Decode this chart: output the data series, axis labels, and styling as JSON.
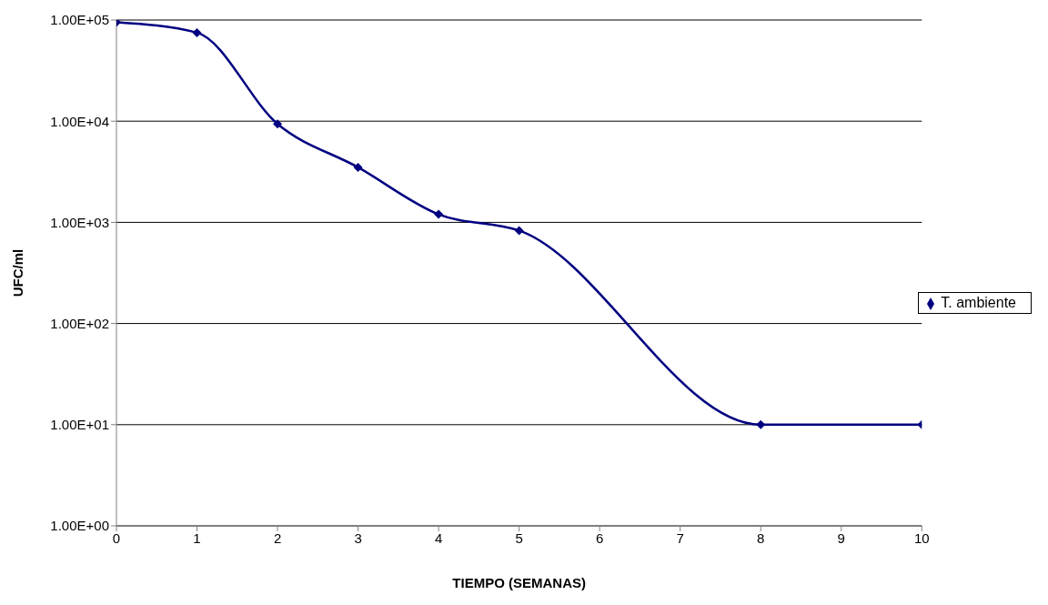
{
  "chart_data": {
    "type": "line",
    "xlabel": "TIEMPO (SEMANAS)",
    "ylabel": "UFC/ml",
    "x": [
      0,
      1,
      2,
      3,
      4,
      5,
      8,
      10
    ],
    "series": [
      {
        "name": "T. ambiente",
        "color": "#000080",
        "values": [
          95000,
          75000,
          9400,
          3500,
          1200,
          830,
          10,
          10
        ]
      }
    ],
    "xlim": [
      0,
      10
    ],
    "xticks": [
      0,
      1,
      2,
      3,
      4,
      5,
      6,
      7,
      8,
      9,
      10
    ],
    "ylim": [
      1,
      100000
    ],
    "yticks": [
      {
        "value": 1,
        "label": "1.00E+00"
      },
      {
        "value": 10,
        "label": "1.00E+01"
      },
      {
        "value": 100,
        "label": "1.00E+02"
      },
      {
        "value": 1000,
        "label": "1.00E+03"
      },
      {
        "value": 10000,
        "label": "1.00E+04"
      },
      {
        "value": 100000,
        "label": "1.00E+05"
      }
    ],
    "log": true,
    "grid": "y",
    "legend": "right",
    "marker": "diamond",
    "line_style": "solid"
  }
}
